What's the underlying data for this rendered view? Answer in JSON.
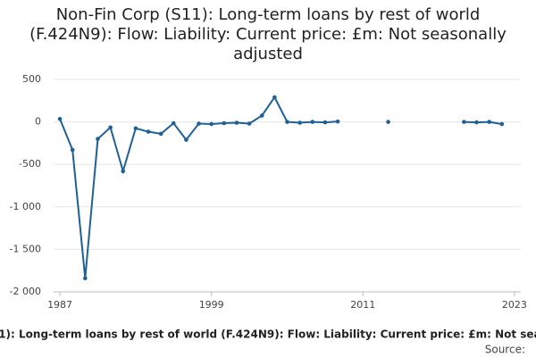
{
  "chart_data": {
    "type": "line",
    "title": "Non-Fin Corp (S11): Long-term loans by rest of world (F.424N9): Flow: Liability: Current price: £m: Not seasonally adjusted",
    "x": [
      1987,
      1988,
      1989,
      1990,
      1991,
      1992,
      1993,
      1994,
      1995,
      1996,
      1997,
      1998,
      1999,
      2000,
      2001,
      2002,
      2003,
      2004,
      2005,
      2006,
      2007,
      2008,
      2009,
      2010,
      2011,
      2012,
      2013,
      2014,
      2015,
      2016,
      2017,
      2018,
      2019,
      2020,
      2021,
      2022
    ],
    "series": [
      {
        "name": "Non-Fin Corp (S11): Long-term loans by rest of world (F.424N9): Flow: Liability: Current price: £m: Not seasonally adjusted",
        "color": "#206095",
        "values": [
          35,
          -330,
          -1840,
          -200,
          -65,
          -580,
          -75,
          -115,
          -140,
          -15,
          -210,
          -20,
          -25,
          -15,
          -10,
          -20,
          75,
          290,
          0,
          -10,
          0,
          -5,
          5,
          null,
          null,
          null,
          0,
          null,
          null,
          null,
          null,
          null,
          0,
          -5,
          0,
          -25
        ]
      }
    ],
    "xlim": [
      1986.5,
      2023.5
    ],
    "xticks": [
      1987,
      1999,
      2011,
      2023
    ],
    "ylim": [
      -2000,
      500
    ],
    "yticks": [
      500,
      0,
      {
        "value": -500,
        "label": "-500"
      },
      {
        "value": -1000,
        "label": "-1 000"
      },
      {
        "value": -1500,
        "label": "-1 500"
      },
      {
        "value": -2000,
        "label": "-2 000"
      }
    ],
    "grid": true,
    "source_label": "Source:"
  }
}
